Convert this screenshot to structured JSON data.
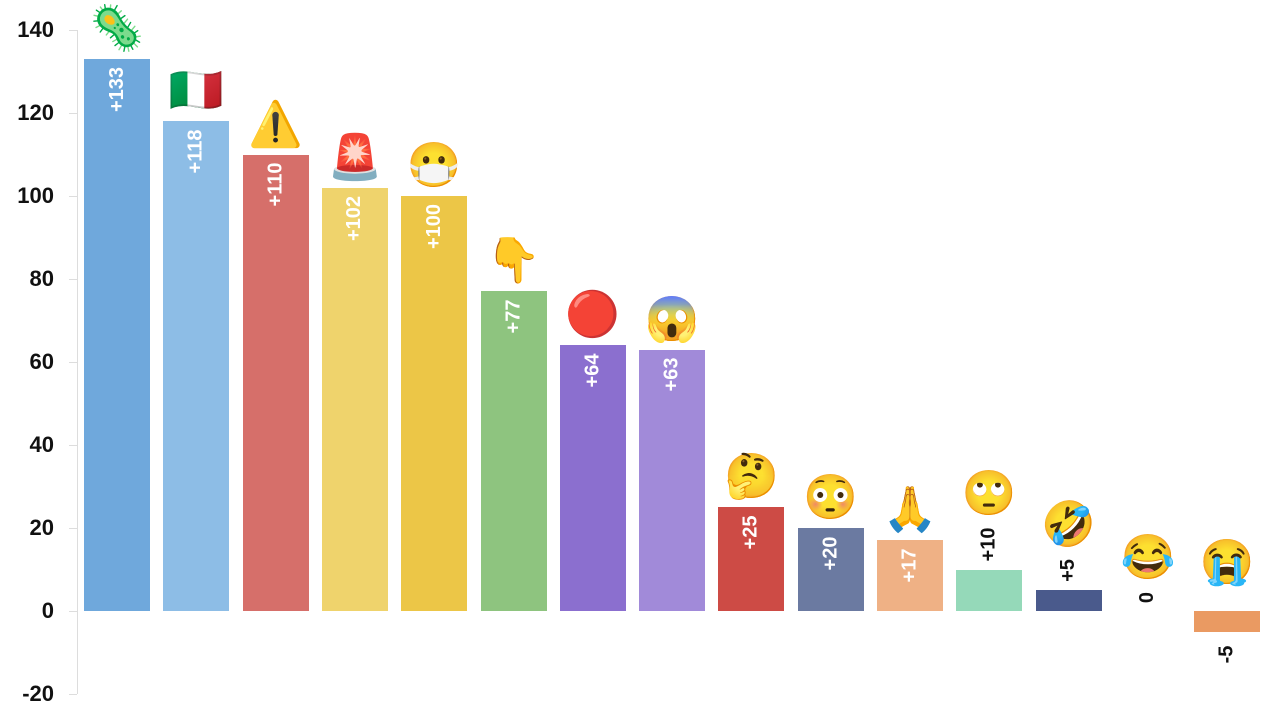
{
  "chart_data": {
    "type": "bar",
    "title": "",
    "xlabel": "",
    "ylabel": "",
    "ylim": [
      -20,
      140
    ],
    "yticks": [
      140,
      120,
      100,
      80,
      60,
      40,
      20,
      0,
      -20
    ],
    "grid": false,
    "legend": null,
    "categories": [
      "microbe",
      "italy-flag",
      "warning",
      "police-light",
      "face-with-mask",
      "pointing-down",
      "red-circle",
      "face-screaming",
      "thinking-face",
      "flushed-face",
      "folded-hands",
      "face-rolling-eyes",
      "rolling-on-floor-laughing",
      "face-with-tears-of-joy",
      "loudly-crying-face"
    ],
    "emojis": [
      "🦠",
      "🇮🇹",
      "⚠️",
      "🚨",
      "😷",
      "👇",
      "🔴",
      "😱",
      "🤔",
      "😳",
      "🙏",
      "🙄",
      "🤣",
      "😂",
      "😭"
    ],
    "values": [
      133,
      118,
      110,
      102,
      100,
      77,
      64,
      63,
      25,
      20,
      17,
      10,
      5,
      0,
      -5
    ],
    "labels": [
      "+133",
      "+118",
      "+110",
      "+102",
      "+100",
      "+77",
      "+64",
      "+63",
      "+25",
      "+20",
      "+17",
      "+10",
      "+5",
      "0",
      "-5"
    ],
    "colors": [
      "#6fa8dc",
      "#8dbde6",
      "#d66f6a",
      "#efd36c",
      "#ecc647",
      "#8ec47f",
      "#8b6fcf",
      "#a18ad9",
      "#cd4b45",
      "#6b7aa1",
      "#efb185",
      "#95d9b9",
      "#4a5a8c",
      "#ffffff",
      "#ea9a62"
    ]
  }
}
